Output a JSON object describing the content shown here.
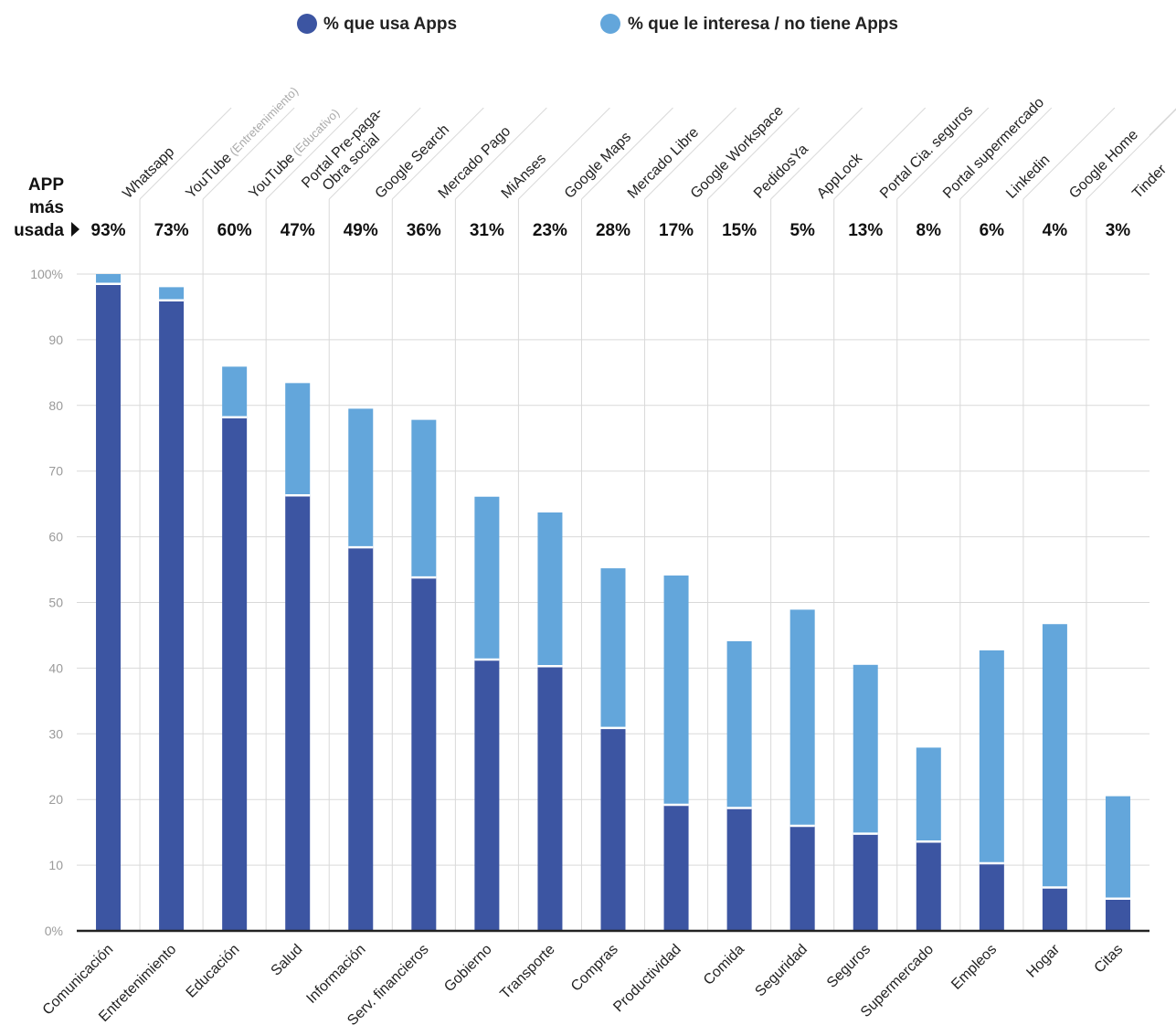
{
  "legend": {
    "uses_label": "% que usa Apps",
    "interest_label": "% que le interesa / no tiene Apps"
  },
  "side_title": {
    "line1": "APP",
    "line2": "más",
    "line3": "usada"
  },
  "colors": {
    "uses": "#3c55a2",
    "interest": "#63a6db",
    "grid": "#d9d9d9",
    "axis": "#222222"
  },
  "chart_data": {
    "type": "bar",
    "stacked": true,
    "categories": [
      "Comunicación",
      "Entretenimiento",
      "Educación",
      "Salud",
      "Información",
      "Serv. financieros",
      "Gobierno",
      "Transporte",
      "Compras",
      "Productividad",
      "Comida",
      "Seguridad",
      "Seguros",
      "Supermercado",
      "Empleos",
      "Hogar",
      "Citas"
    ],
    "series": [
      {
        "name": "% que usa Apps",
        "values": [
          98.5,
          96,
          78.2,
          66.3,
          58.4,
          53.8,
          41.3,
          40.3,
          30.9,
          19.2,
          18.7,
          16,
          14.8,
          13.6,
          10.3,
          6.6,
          4.9
        ]
      },
      {
        "name": "% que le interesa / no tiene Apps",
        "values": [
          1.5,
          2,
          7.7,
          17.1,
          21.1,
          24,
          24.8,
          23.4,
          24.3,
          34.9,
          25.4,
          32.9,
          25.7,
          14.3,
          32.4,
          40.1,
          15.6
        ]
      }
    ],
    "top_apps": [
      {
        "name": "Whatsapp",
        "note": "",
        "pct": "93%"
      },
      {
        "name": "YouTube",
        "note": "(Entretenimiento)",
        "pct": "73%"
      },
      {
        "name": "YouTube",
        "note": "(Educativo)",
        "pct": "60%"
      },
      {
        "name": "Portal Pre-paga-",
        "name2": "Obra social",
        "note": "",
        "pct": "47%"
      },
      {
        "name": "Google Search",
        "note": "",
        "pct": "49%"
      },
      {
        "name": "Mercado Pago",
        "note": "",
        "pct": "36%"
      },
      {
        "name": "MiAnses",
        "note": "",
        "pct": "31%"
      },
      {
        "name": "Google Maps",
        "note": "",
        "pct": "23%"
      },
      {
        "name": "Mercado Libre",
        "note": "",
        "pct": "28%"
      },
      {
        "name": "Google Workspace",
        "note": "",
        "pct": "17%"
      },
      {
        "name": "PedidosYa",
        "note": "",
        "pct": "15%"
      },
      {
        "name": "AppLock",
        "note": "",
        "pct": "5%"
      },
      {
        "name": "Portal Cia. seguros",
        "note": "",
        "pct": "13%"
      },
      {
        "name": "Portal supermercado",
        "note": "",
        "pct": "8%"
      },
      {
        "name": "Linkedin",
        "note": "",
        "pct": "6%"
      },
      {
        "name": "Google Home",
        "note": "",
        "pct": "4%"
      },
      {
        "name": "Tinder",
        "note": "",
        "pct": "3%"
      }
    ],
    "ylim": [
      0,
      100
    ],
    "yticks": [
      0,
      10,
      20,
      30,
      40,
      50,
      60,
      70,
      80,
      90,
      100
    ],
    "ytick_labels": [
      "0%",
      "10",
      "20",
      "30",
      "40",
      "50",
      "60",
      "70",
      "80",
      "90",
      "100%"
    ],
    "grid": true,
    "legend_position": "top"
  }
}
